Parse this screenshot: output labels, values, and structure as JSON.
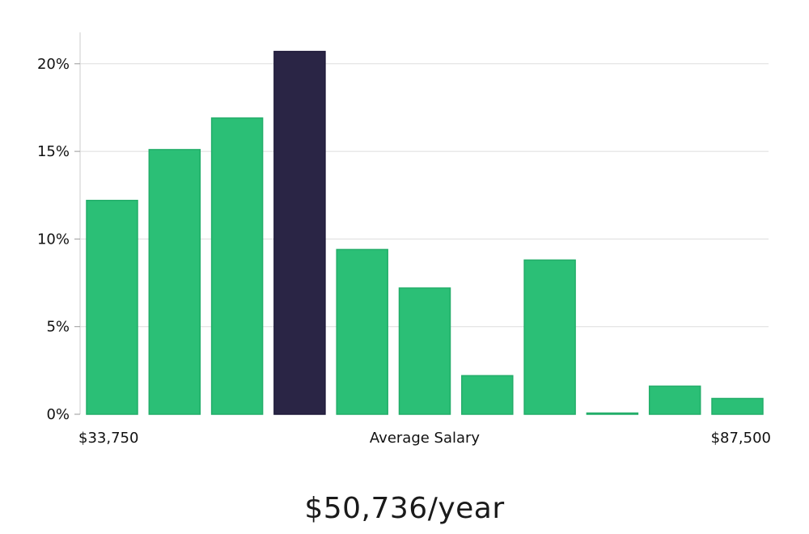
{
  "chart_data": {
    "type": "bar",
    "title": "",
    "xlabel": "Average Salary",
    "ylabel": "",
    "x_range_labels": {
      "min": "$33,750",
      "max": "$87,500"
    },
    "y_ticks": [
      "0%",
      "5%",
      "10%",
      "15%",
      "20%"
    ],
    "ylim": [
      0,
      21.5
    ],
    "grid": "horizontal",
    "values": [
      12.2,
      15.1,
      16.9,
      20.7,
      9.4,
      7.2,
      2.2,
      8.8,
      0.05,
      1.6,
      0.9
    ],
    "highlight_index": 3,
    "colors": {
      "bar": "#2bbf76",
      "highlight": "#2a2545",
      "grid": "#dddddd",
      "axis": "#cccccc"
    }
  },
  "summary": {
    "salary": "$50,736/year"
  }
}
